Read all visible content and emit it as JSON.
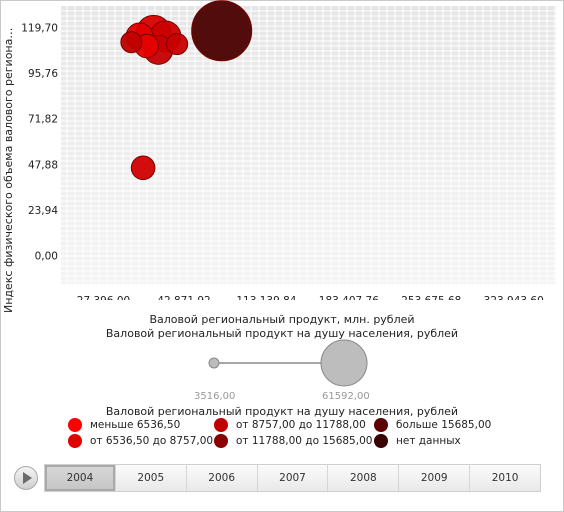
{
  "chart_data": {
    "type": "bubble",
    "ylabel": "Индекс физического объема валового регионального...",
    "xlabel": "Валовой региональный продукт, млн. рублей",
    "size_label": "Валовой региональный продукт на душу населения, рублей",
    "color_label": "Валовой региональный продукт на душу населения, рублей",
    "x_ticks": [
      "-27 396,00",
      "42 871,92",
      "113 139,84",
      "183 407,76",
      "253 675,68",
      "323 943,60"
    ],
    "x_tick_values": [
      -27396,
      42871.92,
      113139.84,
      183407.76,
      253675.68,
      323943.6
    ],
    "y_ticks": [
      "0,00",
      "23,94",
      "47,88",
      "71,82",
      "95,76",
      "119,70"
    ],
    "y_tick_values": [
      0,
      23.94,
      47.88,
      71.82,
      95.76,
      119.7
    ],
    "xlim": [
      -62000,
      360000
    ],
    "ylim": [
      -15,
      131
    ],
    "grid": true,
    "size_range": {
      "min": 3516,
      "max": 61592,
      "min_label": "3516,00",
      "max_label": "61592,00"
    },
    "points": [
      {
        "x": -2000,
        "y": 112,
        "size": 9000,
        "color": "#c00000"
      },
      {
        "x": 5000,
        "y": 115,
        "size": 14000,
        "color": "#e00000"
      },
      {
        "x": 17000,
        "y": 117,
        "size": 22000,
        "color": "#d80000"
      },
      {
        "x": 27000,
        "y": 115,
        "size": 18000,
        "color": "#cc0000"
      },
      {
        "x": 21000,
        "y": 108,
        "size": 16000,
        "color": "#c40000"
      },
      {
        "x": 11000,
        "y": 110,
        "size": 11000,
        "color": "#e60000"
      },
      {
        "x": 37000,
        "y": 111,
        "size": 9000,
        "color": "#c80000"
      },
      {
        "x": 8000,
        "y": 46,
        "size": 11000,
        "color": "#d00000"
      },
      {
        "x": 75000,
        "y": 118,
        "size": 61592,
        "color": "#4a0000"
      }
    ]
  },
  "color_legend": [
    {
      "label": "меньше 6536,50",
      "color": "#ff0000"
    },
    {
      "label": "от 8757,00 до 11788,00",
      "color": "#c00000"
    },
    {
      "label": "больше 15685,00",
      "color": "#5e0000"
    },
    {
      "label": "от 6536,50 до 8757,00",
      "color": "#e00000"
    },
    {
      "label": "от 11788,00 до 15685,00",
      "color": "#8a0000"
    },
    {
      "label": "нет данных",
      "color": "#3a0000"
    }
  ],
  "timeline": {
    "years": [
      "2004",
      "2005",
      "2006",
      "2007",
      "2008",
      "2009",
      "2010"
    ],
    "active": "2004"
  },
  "colors": {
    "plot_background": "#ececec",
    "grid": "#ffffff"
  }
}
